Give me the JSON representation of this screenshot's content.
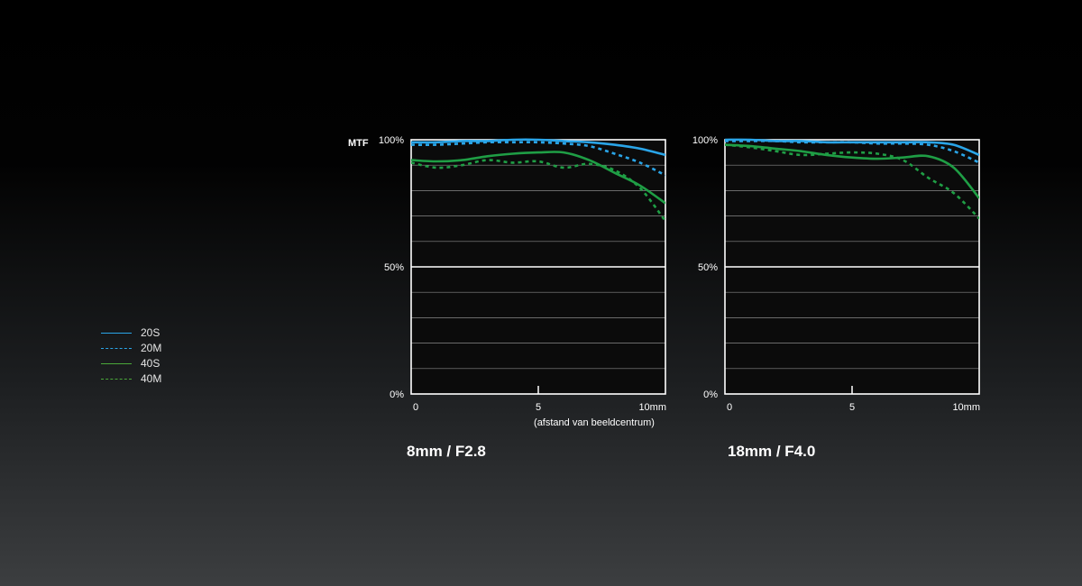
{
  "colors": {
    "20S": "#2aa5e8",
    "20M": "#2aa5e8",
    "40S": "#1f9e45",
    "40M": "#1f9e45"
  },
  "legend": [
    {
      "label": "20S",
      "style": "solid",
      "color": "#2aa5e8"
    },
    {
      "label": "20M",
      "style": "dashed",
      "color": "#2aa5e8"
    },
    {
      "label": "40S",
      "style": "solid",
      "color": "#4aa83a"
    },
    {
      "label": "40M",
      "style": "dashed",
      "color": "#4aa83a"
    }
  ],
  "chart_data": [
    {
      "type": "line",
      "title": "8mm / F2.8",
      "ylabel": "MTF",
      "xlabel": "(afstand van beeldcentrum)",
      "xlim": [
        0,
        10
      ],
      "ylim": [
        0,
        100
      ],
      "x_ticks": [
        "0",
        "5",
        "10mm"
      ],
      "y_ticks": [
        "0%",
        "50%",
        "100%"
      ],
      "grid": true,
      "x": [
        0,
        1,
        2,
        3,
        4,
        5,
        6,
        7,
        8,
        9,
        10
      ],
      "series": [
        {
          "name": "20S",
          "style": "solid",
          "values": [
            99,
            99,
            99.5,
            99.5,
            100,
            100,
            99.5,
            99,
            98,
            96.5,
            94
          ]
        },
        {
          "name": "20M",
          "style": "dashed",
          "values": [
            98,
            98,
            98.5,
            99,
            99,
            99,
            98.5,
            97.5,
            94.5,
            91,
            86
          ]
        },
        {
          "name": "40S",
          "style": "solid",
          "values": [
            92,
            91.5,
            92,
            93.5,
            94.5,
            95,
            95,
            92,
            87,
            82,
            75
          ]
        },
        {
          "name": "40M",
          "style": "dashed",
          "values": [
            91,
            89,
            90,
            92,
            91,
            91.5,
            89,
            90.5,
            88,
            81,
            68
          ]
        }
      ]
    },
    {
      "type": "line",
      "title": "18mm / F4.0",
      "ylabel": "",
      "xlabel": "",
      "xlim": [
        0,
        10
      ],
      "ylim": [
        0,
        100
      ],
      "x_ticks": [
        "0",
        "5",
        "10mm"
      ],
      "y_ticks": [
        "0%",
        "50%",
        "100%"
      ],
      "grid": true,
      "x": [
        0,
        1,
        2,
        3,
        4,
        5,
        6,
        7,
        8,
        9,
        10
      ],
      "series": [
        {
          "name": "20S",
          "style": "solid",
          "values": [
            100,
            100,
            99.5,
            99.5,
            99,
            99,
            99,
            99,
            99,
            98,
            94
          ]
        },
        {
          "name": "20M",
          "style": "dashed",
          "values": [
            99.5,
            99.5,
            99.5,
            99,
            99,
            99,
            98.5,
            98.5,
            98,
            95.5,
            91
          ]
        },
        {
          "name": "40S",
          "style": "solid",
          "values": [
            98,
            97.5,
            96.5,
            95.5,
            94,
            93,
            92.5,
            93,
            93.5,
            89,
            77
          ]
        },
        {
          "name": "40M",
          "style": "dashed",
          "values": [
            98,
            97,
            95.5,
            94,
            94.5,
            95,
            94.5,
            92,
            85,
            79,
            69
          ]
        }
      ]
    }
  ]
}
